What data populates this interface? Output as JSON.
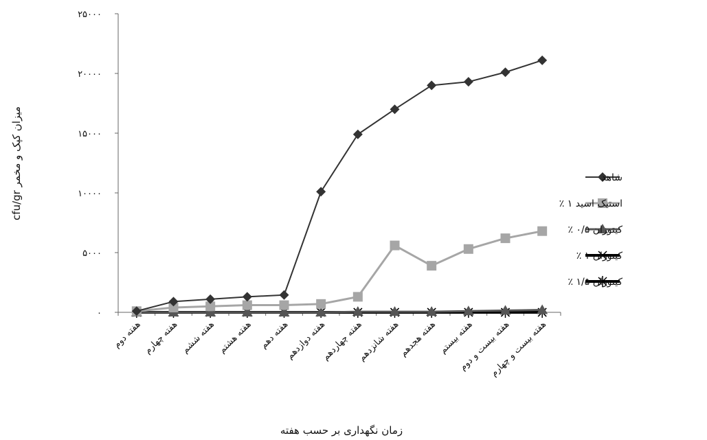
{
  "chart_data": {
    "type": "line",
    "title": "",
    "xlabel": "زمان نگهداری بر حسب هفته",
    "ylabel": "میزان کپک و مخمر cfu/gr",
    "categories": [
      "هفته دوم",
      "هفته چهارم",
      "هفته ششم",
      "هفته هشتم",
      "هفته دهم",
      "هفته دوازدهم",
      "هفته چهاردهم",
      "هفته شانزدهم",
      "هفته هجدهم",
      "هفته بیستم",
      "هفته بیست و دوم",
      "هفته بیست و چهارم"
    ],
    "ylim": [
      0,
      25000
    ],
    "yticks": [
      0,
      5000,
      10000,
      15000,
      20000,
      25000
    ],
    "ytick_labels": [
      "۰",
      "۵۰۰۰",
      "۱۰۰۰۰",
      "۱۵۰۰۰",
      "۲۰۰۰۰",
      "۲۵۰۰۰"
    ],
    "grid": false,
    "legend_position": "right",
    "series": [
      {
        "name": "شاهد",
        "marker": "diamond",
        "color": "#333333",
        "line_width": 2,
        "values": [
          100,
          900,
          1100,
          1300,
          1450,
          10100,
          14900,
          17000,
          19000,
          19300,
          20100,
          21100
        ]
      },
      {
        "name": "استیک اسید ۱ ٪",
        "marker": "square",
        "color": "#a6a6a6",
        "line_width": 3,
        "values": [
          100,
          400,
          500,
          600,
          600,
          700,
          1300,
          5600,
          3900,
          5300,
          6200,
          6800
        ]
      },
      {
        "name": "کیتوزان ۰/۵ ٪",
        "marker": "triangle",
        "color": "#555555",
        "line_width": 3,
        "values": [
          0,
          0,
          0,
          0,
          0,
          0,
          50,
          50,
          50,
          100,
          150,
          200
        ]
      },
      {
        "name": "کیتوزان ۱ ٪",
        "marker": "x",
        "color": "#000000",
        "line_width": 4,
        "values": [
          0,
          0,
          0,
          0,
          0,
          0,
          0,
          0,
          0,
          0,
          0,
          0
        ]
      },
      {
        "name": "کیتوزان ۱/۵ ٪",
        "marker": "star",
        "color": "#000000",
        "line_width": 4,
        "values": [
          0,
          0,
          0,
          0,
          0,
          0,
          0,
          0,
          0,
          0,
          0,
          0
        ]
      }
    ]
  }
}
